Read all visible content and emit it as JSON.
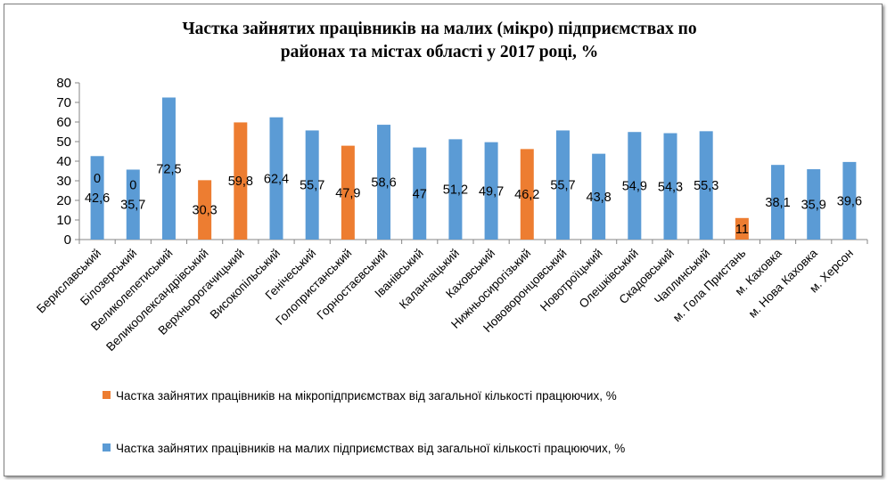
{
  "chart_data": {
    "type": "bar",
    "title": "Частка зайнятих працівників на малих (мікро) підприємствах по районах та містах області  у 2017 році,  %",
    "title_lines": [
      "Частка зайнятих працівників на малих (мікро) підприємствах по",
      "районах та містах області  у 2017 році,  %"
    ],
    "ylim": [
      0,
      80
    ],
    "yticks": [
      "0",
      "10",
      "20",
      "30",
      "40",
      "50",
      "60",
      "70",
      "80"
    ],
    "grid": false,
    "legend_position": "bottom",
    "categories": [
      "Бериславський",
      "Білозерський",
      "Великолепетиський",
      "Великоолександрівський",
      "Верхньорогачицький",
      "Високопільський",
      "Генічеський",
      "Голопристанський",
      "Горностаєвський",
      "Іванівський",
      "Каланчацький",
      "Каховський",
      "Нижньосирогізький",
      "Нововоронцовський",
      "Новотроїцький",
      "Олешківський",
      "Скадовський",
      "Чаплинський",
      "м. Гола Пристань",
      "м. Каховка",
      "м. Нова Каховка",
      "м. Херсон"
    ],
    "series": [
      {
        "name": "Частка зайнятих працівників на мікропідприємствах від загальної кількості працюючих, %",
        "color": "#ed7d31",
        "values": [
          0,
          0,
          null,
          30.3,
          59.8,
          null,
          null,
          47.9,
          null,
          null,
          null,
          null,
          46.2,
          null,
          null,
          null,
          null,
          null,
          11,
          null,
          null,
          null
        ],
        "labels": [
          "0",
          "0",
          "",
          "30,3",
          "59,8",
          "",
          "",
          "47,9",
          "",
          "",
          "",
          "",
          "46,2",
          "",
          "",
          "",
          "",
          "",
          "11",
          "",
          "",
          ""
        ]
      },
      {
        "name": "Частка зайнятих працівників на малих підприємствах від загальної кількості працюючих, %",
        "color": "#5b9bd5",
        "values": [
          42.6,
          35.7,
          72.5,
          null,
          null,
          62.4,
          55.7,
          null,
          58.6,
          47,
          51.2,
          49.7,
          null,
          55.7,
          43.8,
          54.9,
          54.3,
          55.3,
          null,
          38.1,
          35.9,
          39.6
        ],
        "labels": [
          "42,6",
          "35,7",
          "72,5",
          "",
          "",
          "62,4",
          "55,7",
          "",
          "58,6",
          "47",
          "51,2",
          "49,7",
          "",
          "55,7",
          "43,8",
          "54,9",
          "54,3",
          "55,3",
          "",
          "38,1",
          "35,9",
          "39,6"
        ]
      }
    ]
  }
}
